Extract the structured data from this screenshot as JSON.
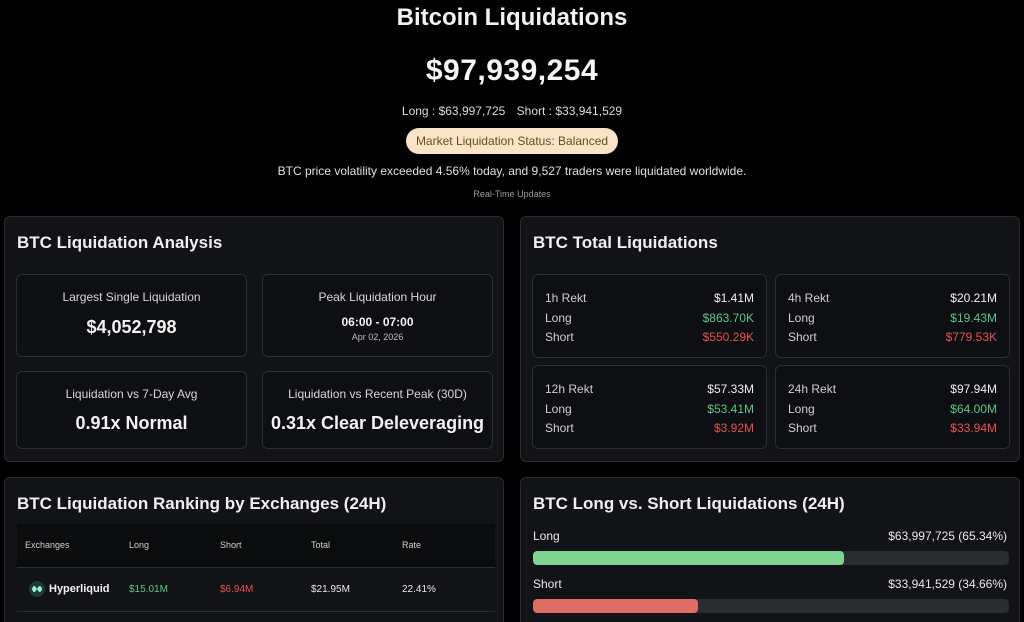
{
  "hero": {
    "title": "Bitcoin Liquidations",
    "total": "$97,939,254",
    "long": "Long : $63,997,725",
    "short": "Short : $33,941,529",
    "status": "Market Liquidation Status: Balanced",
    "note": "BTC price volatility exceeded 4.56% today, and 9,527 traders were liquidated worldwide.",
    "updates": "Real-Time Updates"
  },
  "analysis": {
    "title": "BTC Liquidation Analysis",
    "cards": [
      {
        "label": "Largest Single Liquidation",
        "value": "$4,052,798"
      },
      {
        "label": "Peak Liquidation Hour",
        "value": "06:00 - 07:00",
        "sub": "Apr 02, 2026"
      },
      {
        "label": "Liquidation vs 7-Day Avg",
        "value": "0.91x Normal"
      },
      {
        "label": "Liquidation vs Recent Peak (30D)",
        "value": "0.31x Clear Deleveraging"
      }
    ]
  },
  "totals": {
    "title": "BTC Total Liquidations",
    "blocks": [
      {
        "label": "1h Rekt",
        "total": "$1.41M",
        "long_label": "Long",
        "long": "$863.70K",
        "short_label": "Short",
        "short": "$550.29K"
      },
      {
        "label": "4h Rekt",
        "total": "$20.21M",
        "long_label": "Long",
        "long": "$19.43M",
        "short_label": "Short",
        "short": "$779.53K"
      },
      {
        "label": "12h Rekt",
        "total": "$57.33M",
        "long_label": "Long",
        "long": "$53.41M",
        "short_label": "Short",
        "short": "$3.92M"
      },
      {
        "label": "24h Rekt",
        "total": "$97.94M",
        "long_label": "Long",
        "long": "$64.00M",
        "short_label": "Short",
        "short": "$33.94M"
      }
    ]
  },
  "ranking": {
    "title": "BTC Liquidation Ranking by Exchanges (24H)",
    "columns": [
      "Exchanges",
      "Long",
      "Short",
      "Total",
      "Rate"
    ],
    "rows": [
      {
        "exchange": "Hyperliquid",
        "long": "$15.01M",
        "short": "$6.94M",
        "total": "$21.95M",
        "rate": "22.41%"
      }
    ]
  },
  "longshort": {
    "title": "BTC Long vs. Short Liquidations (24H)",
    "long_label": "Long",
    "long_value": "$63,997,725 (65.34%)",
    "long_pct": 65.34,
    "short_label": "Short",
    "short_value": "$33,941,529 (34.66%)",
    "short_pct": 34.66
  },
  "colors": {
    "long_bar": "#7fd48f",
    "short_bar": "#e06c66",
    "status_pill_bg": "#fae3c6"
  }
}
